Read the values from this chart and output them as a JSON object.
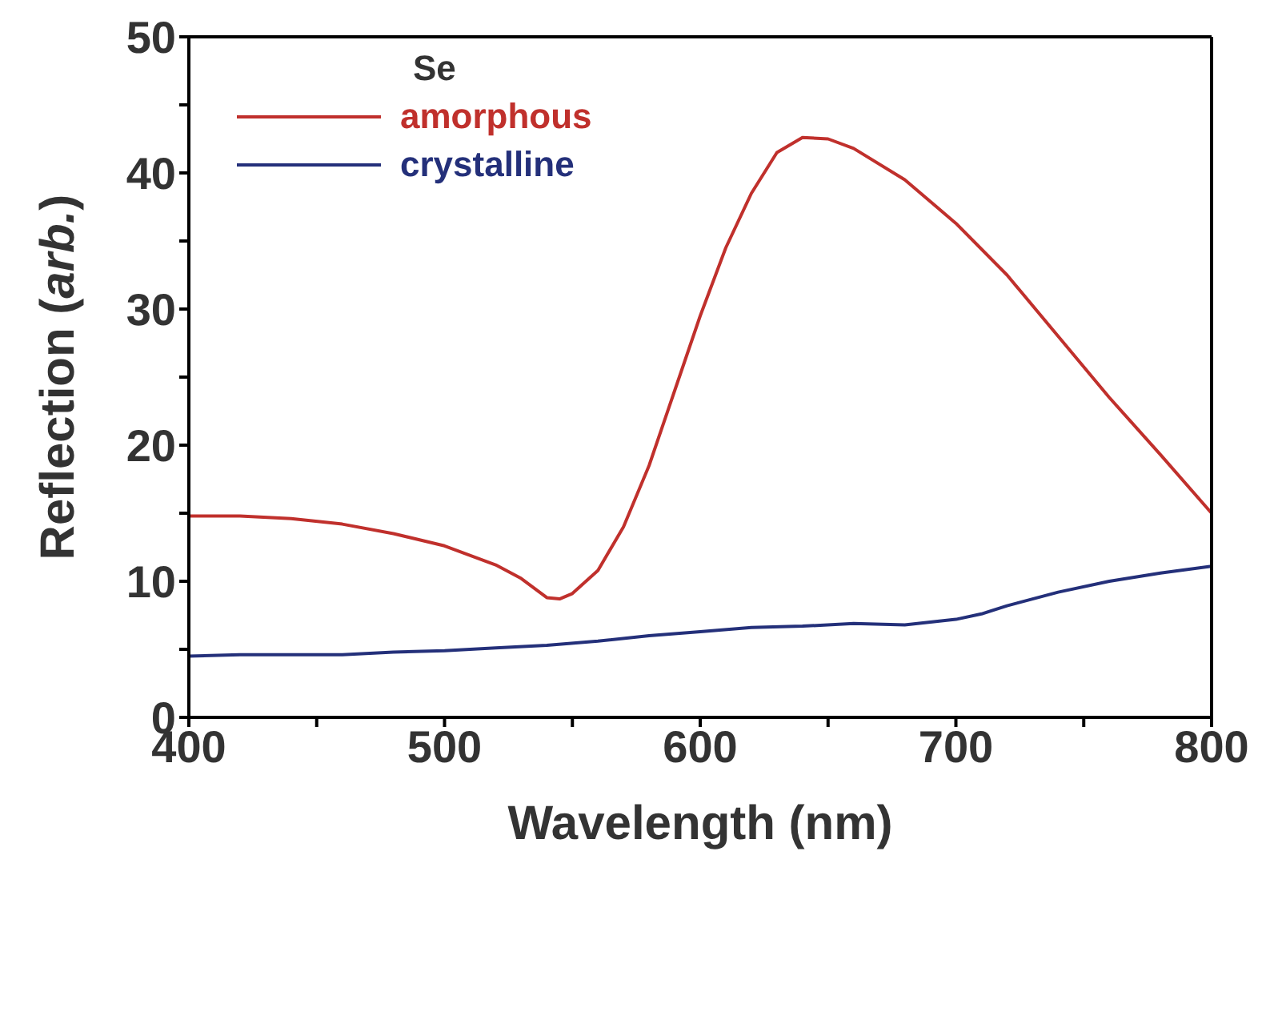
{
  "chart_data": {
    "type": "line",
    "xlabel": "Wavelength (nm)",
    "ylabel": "Reflection (arb.)",
    "legend_title": "Se",
    "legend": "top left",
    "grid": false,
    "marker": "none",
    "line_style": "solid",
    "xlim": [
      400,
      800
    ],
    "ylim": [
      0,
      50
    ],
    "xticks": [
      400,
      {
        "value": 450,
        "label": null
      },
      500,
      {
        "value": 550,
        "label": null
      },
      600,
      {
        "value": 650,
        "label": null
      },
      700,
      {
        "value": 750,
        "label": null
      },
      800
    ],
    "yticks": [
      0,
      {
        "value": 5,
        "label": null
      },
      10,
      {
        "value": 15,
        "label": null
      },
      20,
      {
        "value": 25,
        "label": null
      },
      30,
      {
        "value": 35,
        "label": null
      },
      40,
      {
        "value": 45,
        "label": null
      },
      50
    ],
    "series": [
      {
        "name": "amorphous",
        "color": "#c0302c",
        "x": [
          400,
          420,
          440,
          460,
          480,
          500,
          520,
          530,
          540,
          545,
          550,
          560,
          570,
          580,
          590,
          600,
          610,
          620,
          630,
          640,
          650,
          660,
          680,
          700,
          720,
          740,
          760,
          780,
          800
        ],
        "values": [
          14.8,
          14.8,
          14.6,
          14.2,
          13.5,
          12.6,
          11.2,
          10.2,
          8.8,
          8.7,
          9.1,
          10.8,
          14,
          18.5,
          24,
          29.5,
          34.5,
          38.5,
          41.5,
          42.6,
          42.5,
          41.8,
          39.5,
          36.3,
          32.5,
          28,
          23.5,
          19.3,
          15
        ]
      },
      {
        "name": "crystalline",
        "color": "#24307a",
        "x": [
          400,
          420,
          440,
          460,
          480,
          500,
          520,
          540,
          560,
          580,
          600,
          620,
          640,
          660,
          680,
          700,
          710,
          720,
          740,
          760,
          780,
          800
        ],
        "values": [
          4.5,
          4.6,
          4.6,
          4.6,
          4.8,
          4.9,
          5.1,
          5.3,
          5.6,
          6.0,
          6.3,
          6.6,
          6.7,
          6.9,
          6.8,
          7.2,
          7.6,
          8.2,
          9.2,
          10.0,
          10.6,
          11.1
        ]
      }
    ]
  }
}
